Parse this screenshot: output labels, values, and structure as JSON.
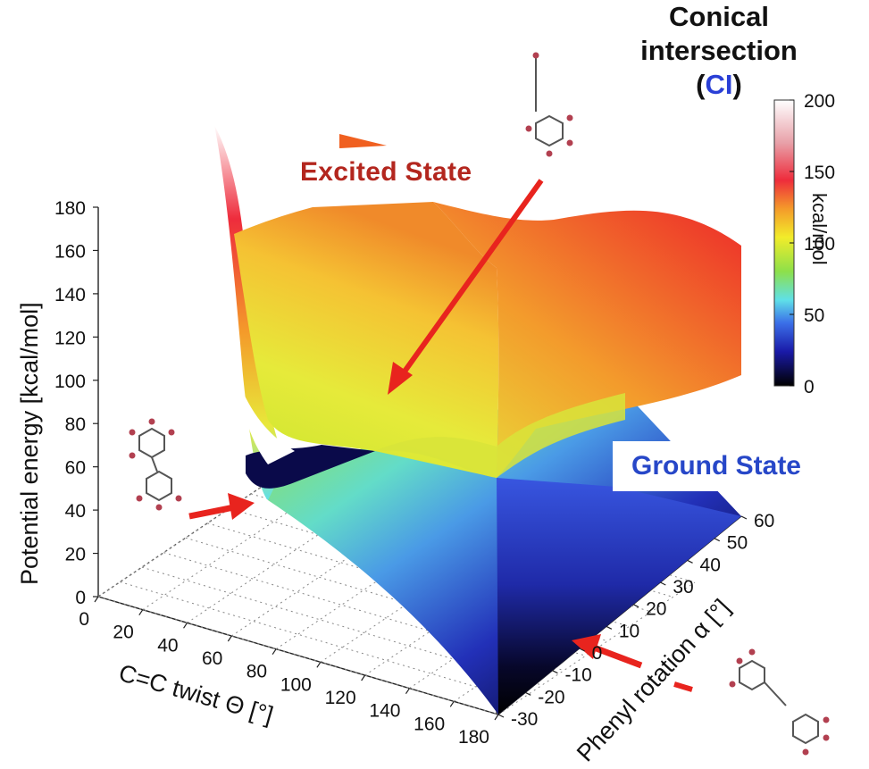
{
  "chart_data": {
    "type": "surface",
    "title": "Conical intersection",
    "title_abbr_open": "(",
    "title_abbr": "CI",
    "title_abbr_close": ")",
    "surfaces": [
      {
        "name": "Excited State"
      },
      {
        "name": "Ground State"
      }
    ],
    "zlabel": "Potential energy  [kcal/mol]",
    "xlabel": "C=C twist Θ [°]",
    "ylabel": "Phenyl rotation α [°]",
    "zticks": [
      0,
      20,
      40,
      60,
      80,
      100,
      120,
      140,
      160,
      180
    ],
    "xticks": [
      0,
      20,
      40,
      60,
      80,
      100,
      120,
      140,
      160,
      180
    ],
    "yticks": [
      -30,
      -20,
      -10,
      0,
      10,
      20,
      30,
      40,
      50,
      60
    ],
    "zlim": [
      0,
      180
    ],
    "xlim": [
      0,
      180
    ],
    "ylim": [
      -30,
      60
    ],
    "colorbar": {
      "label": "kcal/mol",
      "ticks": [
        0,
        50,
        100,
        150,
        200
      ],
      "range": [
        0,
        200
      ],
      "colors": [
        "#000000",
        "#1a1aa8",
        "#3b6fe8",
        "#5fe0e8",
        "#8de04a",
        "#f2ec2a",
        "#f49a2a",
        "#ee2c3c",
        "#ffffff"
      ]
    }
  }
}
